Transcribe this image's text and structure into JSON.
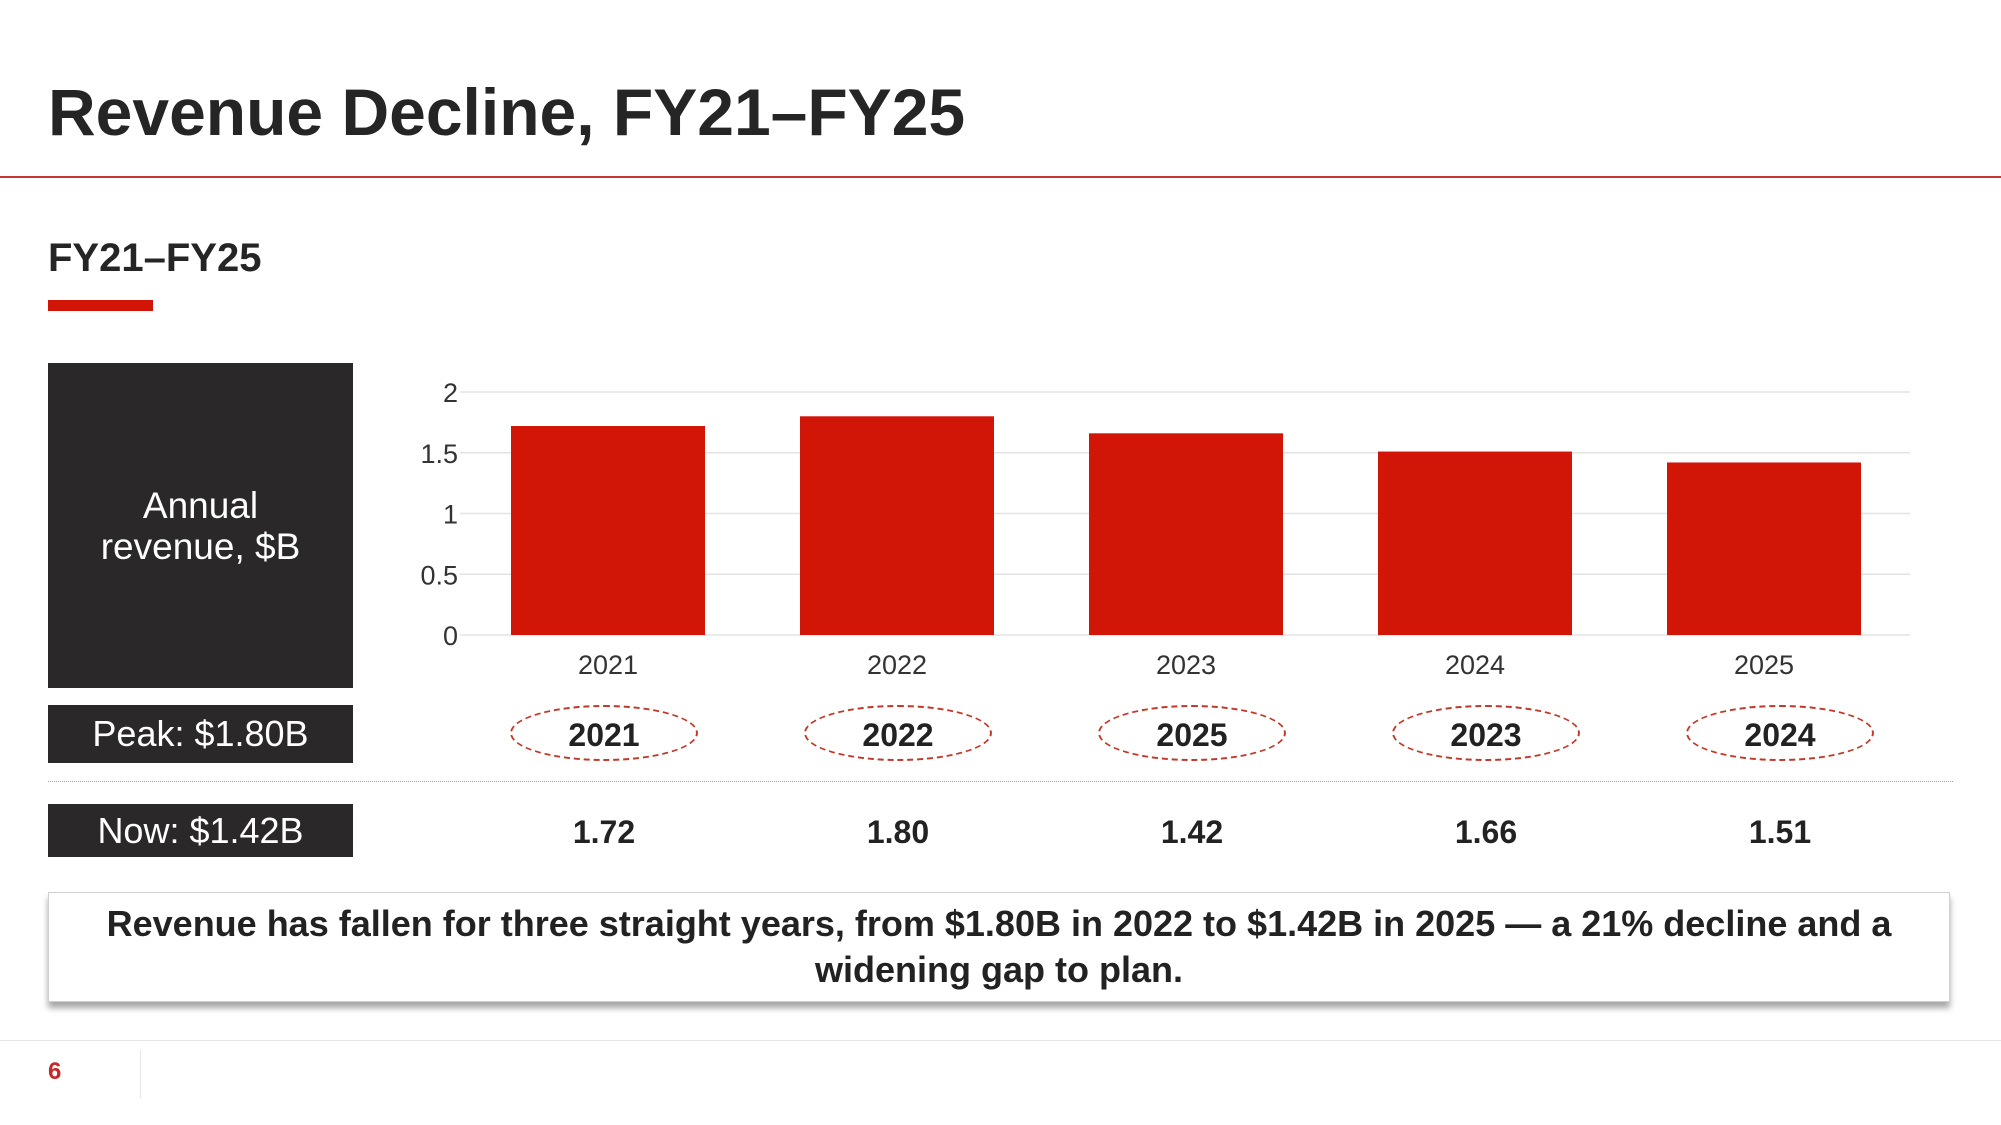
{
  "slide": {
    "title": "Revenue Decline, FY21–FY25",
    "subtitle": "FY21–FY25",
    "panel_label": "Annual revenue, $B",
    "peak_label": "Peak: $1.80B",
    "now_label": "Now: $1.42B",
    "callout": "Revenue has fallen for three straight years, from $1.80B in 2022 to $1.42B in 2025 — a 21% decline and a widening gap to plan.",
    "page_number": "6"
  },
  "ellipse_row": [
    "2021",
    "2022",
    "2025",
    "2023",
    "2024"
  ],
  "value_row": [
    "1.72",
    "1.80",
    "1.42",
    "1.66",
    "1.51"
  ],
  "chart_data": {
    "type": "bar",
    "categories": [
      "2021",
      "2022",
      "2023",
      "2024",
      "2025"
    ],
    "values": [
      1.72,
      1.8,
      1.66,
      1.51,
      1.42
    ],
    "yticks": [
      "0",
      "0.5",
      "1",
      "1.5",
      "2"
    ],
    "ylim": [
      0,
      2
    ],
    "grid": true,
    "bar_color": "#d11507"
  },
  "colors": {
    "accent": "#d11507",
    "dark": "#2a2829",
    "rule": "#c0392b"
  }
}
